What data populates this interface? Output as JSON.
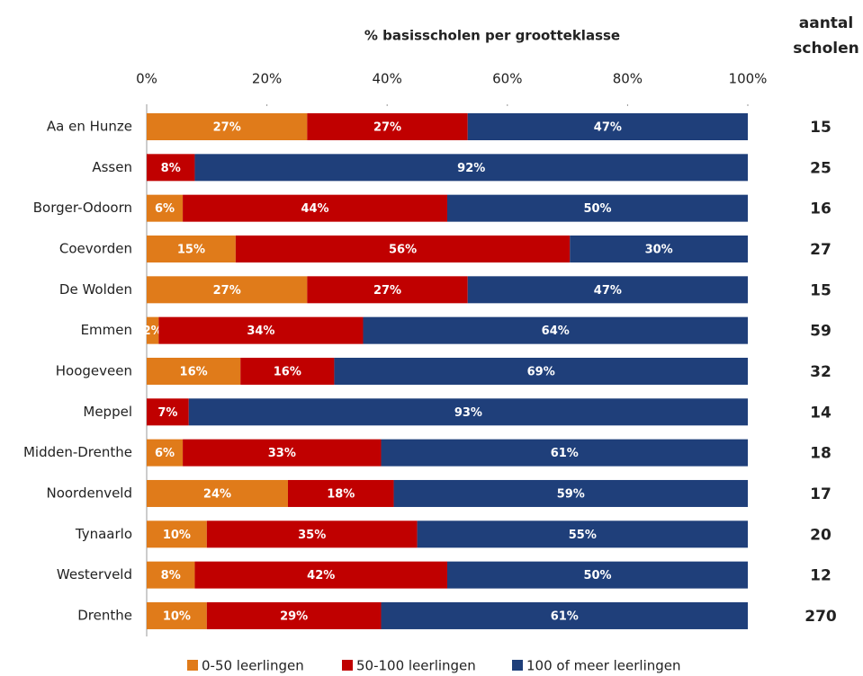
{
  "chart_data": {
    "type": "stacked-bar-horizontal",
    "title": "% basisscholen per grootteklasse",
    "categories": [
      "Aa en Hunze",
      "Assen",
      "Borger-Odoorn",
      "Coevorden",
      "De Wolden",
      "Emmen",
      "Hoogeveen",
      "Meppel",
      "Midden-Drenthe",
      "Noordenveld",
      "Tynaarlo",
      "Westerveld",
      "Drenthe"
    ],
    "series": [
      {
        "name": "0-50 leerlingen",
        "color": "#e07b1a",
        "values": [
          26.7,
          null,
          6,
          14.8,
          26.7,
          2,
          15.6,
          null,
          6,
          23.5,
          10,
          8,
          10
        ],
        "value_labels": [
          "27%",
          null,
          "6%",
          "15%",
          "27%",
          "2%",
          "16%",
          null,
          "6%",
          "24%",
          "10%",
          "8%",
          "10%"
        ]
      },
      {
        "name": "50-100 leerlingen",
        "color": "#c00000",
        "values": [
          26.7,
          8,
          44,
          55.6,
          26.7,
          34,
          15.6,
          7,
          33,
          17.6,
          35,
          42,
          29
        ],
        "value_labels": [
          "27%",
          "8%",
          "44%",
          "56%",
          "27%",
          "34%",
          "16%",
          "7%",
          "33%",
          "18%",
          "35%",
          "42%",
          "29%"
        ]
      },
      {
        "name": "100 of meer leerlingen",
        "color": "#1f3f7a",
        "values": [
          46.6,
          92,
          50,
          29.6,
          46.6,
          64,
          68.8,
          93,
          61,
          58.9,
          55,
          50,
          61
        ],
        "value_labels": [
          "47%",
          "92%",
          "50%",
          "30%",
          "47%",
          "64%",
          "69%",
          "93%",
          "61%",
          "59%",
          "55%",
          "50%",
          "61%"
        ]
      }
    ],
    "xlim": [
      0,
      100
    ],
    "xticks": [
      {
        "value": 0,
        "label": "0%"
      },
      {
        "value": 20,
        "label": "20%"
      },
      {
        "value": 40,
        "label": "40%"
      },
      {
        "value": 60,
        "label": "60%"
      },
      {
        "value": 80,
        "label": "80%"
      },
      {
        "value": 100,
        "label": "100%"
      }
    ],
    "legend": "bottom",
    "counts": {
      "label": [
        "aantal",
        "scholen"
      ],
      "color": "#1f3f7a",
      "values": [
        15,
        25,
        16,
        27,
        15,
        59,
        32,
        14,
        18,
        17,
        20,
        12,
        270
      ]
    }
  }
}
